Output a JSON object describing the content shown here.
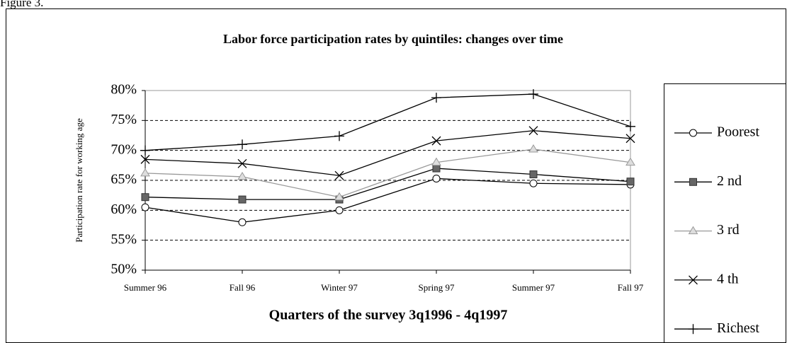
{
  "caption": "Figure 3.",
  "chart_data": {
    "type": "line",
    "title": "Labor force participation rates by quintiles: changes over time",
    "x_label": "Quarters of the survey 3q1996 - 4q1997",
    "y_label": "Participation rate for working age",
    "categories": [
      "Summer 96",
      "Fall 96",
      "Winter 97",
      "Spring 97",
      "Summer 97",
      "Fall 97"
    ],
    "ylim": [
      50,
      80
    ],
    "yticks": [
      {
        "value": 50,
        "label": "50%"
      },
      {
        "value": 55,
        "label": "55%"
      },
      {
        "value": 60,
        "label": "60%"
      },
      {
        "value": 65,
        "label": "65%"
      },
      {
        "value": 70,
        "label": "70%"
      },
      {
        "value": 75,
        "label": "75%"
      },
      {
        "value": 80,
        "label": "80%"
      }
    ],
    "grid": true,
    "legend": "right",
    "series": [
      {
        "name": "Poorest",
        "color": "#000000",
        "marker": "circle",
        "values": [
          60.5,
          58,
          60,
          65.3,
          64.5,
          64.3
        ]
      },
      {
        "name": "2 nd",
        "color": "#000000",
        "marker": "square",
        "values": [
          62.2,
          61.8,
          61.8,
          67,
          66,
          64.8
        ]
      },
      {
        "name": "3 rd",
        "color": "#999999",
        "marker": "triangle",
        "values": [
          66.2,
          65.6,
          62.2,
          68,
          70.2,
          68
        ]
      },
      {
        "name": "4 th",
        "color": "#000000",
        "marker": "x",
        "values": [
          68.5,
          67.8,
          65.8,
          71.6,
          73.3,
          72
        ]
      },
      {
        "name": "Richest",
        "color": "#000000",
        "marker": "plus",
        "values": [
          70,
          71,
          72.4,
          78.8,
          79.4,
          74
        ]
      }
    ]
  }
}
